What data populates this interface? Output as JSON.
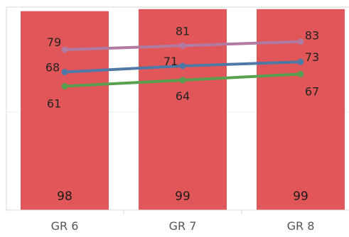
{
  "chart_data": {
    "type": "bar",
    "categories": [
      "GR 6",
      "GR 7",
      "GR 8"
    ],
    "series": [
      {
        "values": [
          98,
          99,
          99
        ],
        "color": "#e15759",
        "kind": "bar"
      },
      {
        "values": [
          79,
          81,
          83
        ],
        "color": "#b07aa1",
        "kind": "line"
      },
      {
        "values": [
          68,
          71,
          73
        ],
        "color": "#4e79a7",
        "kind": "line"
      },
      {
        "values": [
          61,
          64,
          67
        ],
        "color": "#59a14f",
        "kind": "line"
      }
    ],
    "title": "",
    "xlabel": "",
    "ylabel": "",
    "ylim": [
      0,
      100
    ],
    "grid": true,
    "legend": "none"
  }
}
